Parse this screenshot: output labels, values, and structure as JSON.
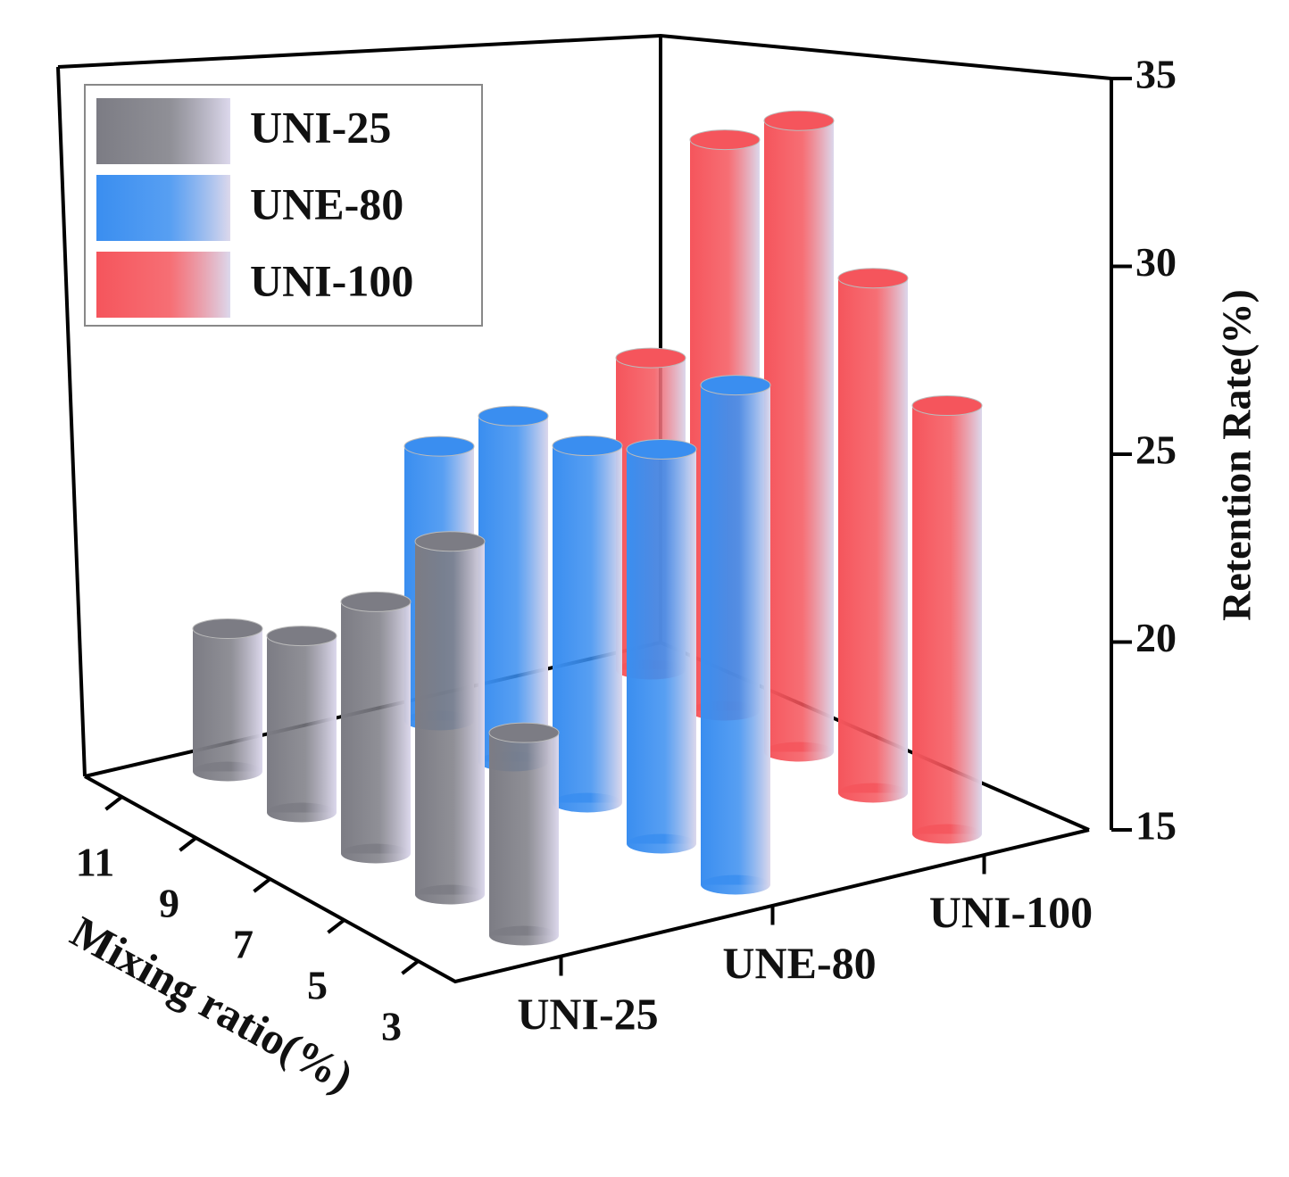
{
  "chart_data": {
    "type": "bar3d",
    "y_label": "Retention Rate(%)",
    "x_label": "Mixing ratio(%)",
    "categories": [
      "3",
      "5",
      "7",
      "9",
      "11"
    ],
    "series": [
      {
        "name": "UNI-25",
        "color": "#7c7c84",
        "values": [
          20.4,
          24.4,
          21.7,
          19.7,
          18.8
        ]
      },
      {
        "name": "UNE-80",
        "color": "#3a8ef0",
        "values": [
          28.3,
          25.5,
          24.5,
          24.2,
          22.3
        ]
      },
      {
        "name": "UNI-100",
        "color": "#f5555c",
        "values": [
          26.4,
          28.7,
          31.8,
          30.2,
          23.3
        ]
      }
    ],
    "ylim": [
      15,
      35
    ],
    "yticks": [
      15,
      20,
      25,
      30,
      35
    ]
  }
}
